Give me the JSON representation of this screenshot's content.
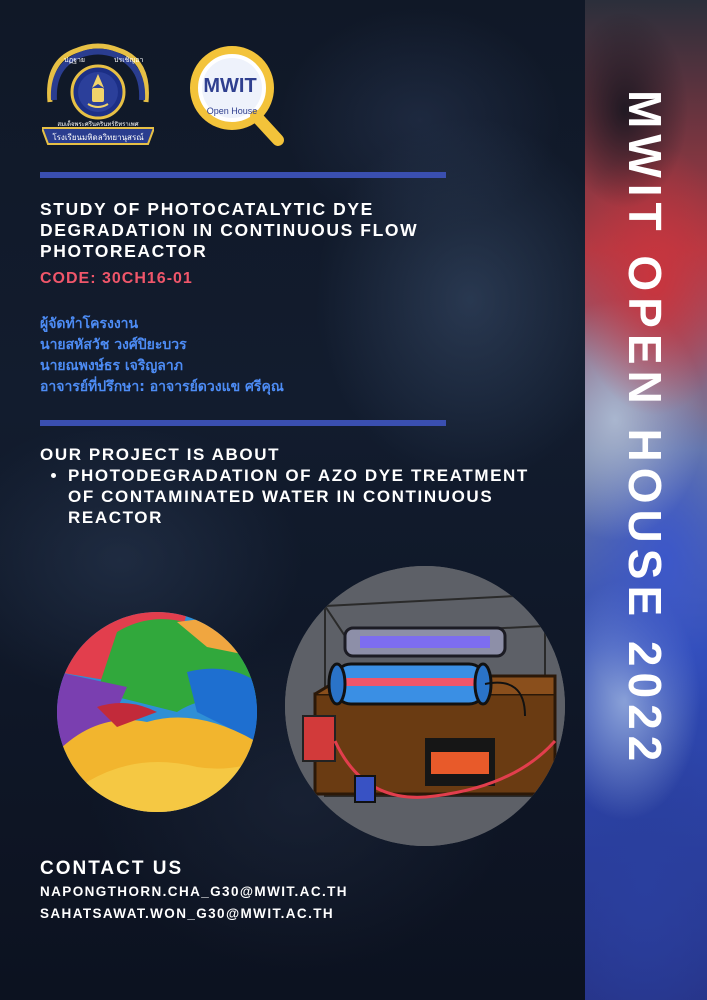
{
  "sidebar": {
    "title": "MWIT OPEN HOUSE 2022"
  },
  "logos": {
    "school_seal": {
      "icon": "school-seal-icon",
      "text_top_left": "ปฏฐาย",
      "text_top_right": "ปรเชิญอา",
      "text_middle": "สมเด็จพระศรีนครินทร์ธิทราเพศ",
      "text_banner": "โรงเรียนมหิดลวิทยานุสรณ์"
    },
    "open_house": {
      "icon": "mwit-open-house-logo-icon",
      "text_main": "MWIT",
      "text_sub": "Open House"
    }
  },
  "project": {
    "title": "STUDY OF PHOTOCATALYTIC DYE DEGRADATION IN CONTINUOUS FLOW PHOTOREACTOR",
    "code": "CODE: 30CH16-01"
  },
  "people": {
    "heading": "ผู้จัดทำโครงงาน",
    "member1": "นายสหัสวัช วงศ์ปิยะบวร",
    "member2": "นายณพงษ์ธร เจริญลาภ",
    "advisor": "อาจารย์ที่ปรึกษา: อาจารย์ดวงแข ศรีคุณ"
  },
  "about": {
    "heading": "OUR PROJECT IS ABOUT",
    "items": [
      "PHOTODEGRADATION OF AZO DYE TREATMENT OF CONTAMINATED WATER IN CONTINUOUS REACTOR"
    ]
  },
  "images": {
    "dye_powder": "colorful-dye-powder-image",
    "reactor": "photoreactor-illustration-image"
  },
  "contact": {
    "heading": "CONTACT US",
    "email1": "NAPONGTHORN.CHA_G30@MWIT.AC.TH",
    "email2": "SAHATSAWAT.WON_G30@MWIT.AC.TH"
  },
  "colors": {
    "accent_rule": "#3a4fb0",
    "code_red": "#f0566a",
    "names_blue": "#4d8cf5",
    "background": "#0d1424"
  }
}
